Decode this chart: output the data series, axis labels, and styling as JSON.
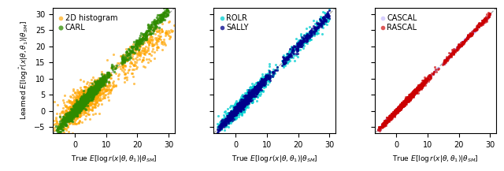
{
  "xlim": [
    -7,
    32
  ],
  "ylim": [
    -7,
    32
  ],
  "xticks": [
    0,
    10,
    20,
    30
  ],
  "yticks": [
    -5,
    0,
    5,
    10,
    15,
    20,
    25,
    30
  ],
  "xlabel_p1": "True $E[\\log r(x|\\theta, \\theta_1)|\\theta_{SM}]$",
  "xlabel_p2": "True $E[\\log r(x|\\theta, \\theta_1)|\\theta_{SM}]$",
  "xlabel_p3": "True $E[\\log r(x|\\theta, \\theta_1)|\\theta_{SM}]$",
  "ylabel": "Learned $E[\\log \\hat{r}(x|\\theta, \\theta_1)|\\theta_{SM}]$",
  "panels": [
    {
      "series": [
        {
          "label": "2D histogram",
          "color": "#FFA500",
          "size": 5,
          "alpha": 0.65,
          "noise_x": 1.5,
          "noise_y": 2.0,
          "bias_slope": -0.12,
          "bias_intercept": 0.0
        },
        {
          "label": "CARL",
          "color": "#2E8B00",
          "size": 6,
          "alpha": 0.75,
          "noise_x": 0.0,
          "noise_y": 0.9,
          "bias_slope": 0.04,
          "bias_intercept": 0.0
        }
      ]
    },
    {
      "series": [
        {
          "label": "ROLR",
          "color": "#00CED1",
          "size": 5,
          "alpha": 0.75,
          "noise_x": 0.0,
          "noise_y": 1.2,
          "bias_slope": 0.0,
          "bias_intercept": 0.0
        },
        {
          "label": "SALLY",
          "color": "#00008B",
          "size": 5,
          "alpha": 0.75,
          "noise_x": 0.0,
          "noise_y": 0.7,
          "bias_slope": 0.0,
          "bias_intercept": 0.0
        }
      ]
    },
    {
      "series": [
        {
          "label": "CASCAL",
          "color": "#B0A0FF",
          "size": 5,
          "alpha": 0.5,
          "noise_x": 0.0,
          "noise_y": 0.28,
          "bias_slope": 0.0,
          "bias_intercept": 0.0
        },
        {
          "label": "RASCAL",
          "color": "#CC0000",
          "size": 5,
          "alpha": 0.65,
          "noise_x": 0.0,
          "noise_y": 0.45,
          "bias_slope": 0.0,
          "bias_intercept": 0.0
        }
      ]
    }
  ],
  "diag_color": "#AAAAAA",
  "diag_style": "--",
  "n_points": 1200,
  "x_true_min": -6,
  "x_true_max": 30
}
